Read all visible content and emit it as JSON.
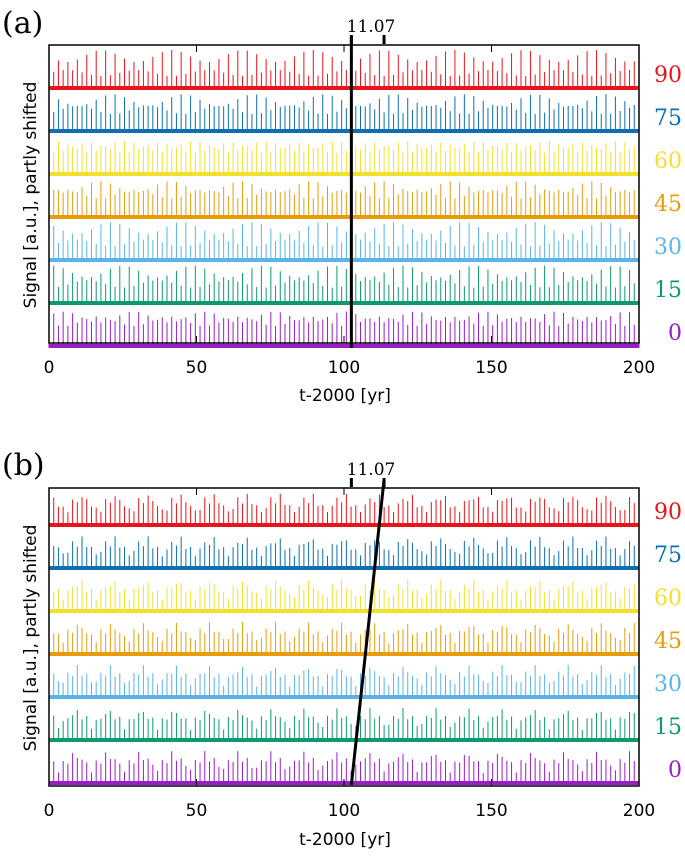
{
  "figure": {
    "panels": [
      {
        "panel_label": "(a)",
        "ylabel": "Signal [a.u.], partly shifted",
        "xlabel": "t-2000 [yr]",
        "annotation": "11.07"
      },
      {
        "panel_label": "(b)",
        "ylabel": "Signal [a.u.], partly shifted",
        "xlabel": "t-2000 [yr]",
        "annotation": "11.07"
      }
    ]
  },
  "chart_data": [
    {
      "type": "line",
      "title": "",
      "panel": "(a)",
      "xlabel": "t-2000 [yr]",
      "ylabel": "Signal [a.u.], partly shifted",
      "xlim": [
        0,
        200
      ],
      "x_ticks": [
        0,
        50,
        100,
        150,
        200
      ],
      "grid": false,
      "series": [
        {
          "name": "90",
          "color": "#e8141c",
          "period_yr": 1.6,
          "envelope_period_yr": 3.2
        },
        {
          "name": "75",
          "color": "#0e6fb3",
          "period_yr": 1.6,
          "envelope_period_yr": 3.2
        },
        {
          "name": "60",
          "color": "#f2e12c",
          "period_yr": 1.6,
          "envelope_period_yr": 3.2
        },
        {
          "name": "45",
          "color": "#e89c0c",
          "period_yr": 1.6,
          "envelope_period_yr": 3.2
        },
        {
          "name": "30",
          "color": "#5ab4e8",
          "period_yr": 1.6,
          "envelope_period_yr": 3.2
        },
        {
          "name": "15",
          "color": "#0e9a70",
          "period_yr": 1.6,
          "envelope_period_yr": 3.2
        },
        {
          "name": "0",
          "color": "#9a1ec8",
          "period_yr": 1.6,
          "envelope_period_yr": 3.2
        }
      ],
      "annotation": {
        "text": "11.07",
        "line": {
          "x_start": 102.5,
          "x_end": 102.5,
          "from_series": "0",
          "to_series": "90"
        },
        "bracket": [
          102.5,
          113.57
        ]
      }
    },
    {
      "type": "line",
      "title": "",
      "panel": "(b)",
      "xlabel": "t-2000 [yr]",
      "ylabel": "Signal [a.u.], partly shifted",
      "xlim": [
        0,
        200
      ],
      "x_ticks": [
        0,
        50,
        100,
        150,
        200
      ],
      "grid": false,
      "series": [
        {
          "name": "90",
          "color": "#e8141c",
          "period_yr": 1.6,
          "envelope_period_yr": 11.07
        },
        {
          "name": "75",
          "color": "#0e6fb3",
          "period_yr": 1.6,
          "envelope_period_yr": 11.07
        },
        {
          "name": "60",
          "color": "#f2e12c",
          "period_yr": 1.6,
          "envelope_period_yr": 11.07
        },
        {
          "name": "45",
          "color": "#e89c0c",
          "period_yr": 1.6,
          "envelope_period_yr": 11.07
        },
        {
          "name": "30",
          "color": "#5ab4e8",
          "period_yr": 1.6,
          "envelope_period_yr": 11.07
        },
        {
          "name": "15",
          "color": "#0e9a70",
          "period_yr": 1.6,
          "envelope_period_yr": 11.07
        },
        {
          "name": "0",
          "color": "#9a1ec8",
          "period_yr": 1.6,
          "envelope_period_yr": 11.07
        }
      ],
      "annotation": {
        "text": "11.07",
        "line": {
          "x_start": 102.5,
          "x_end": 113.57,
          "from_series": "0",
          "to_series": "90"
        },
        "bracket": [
          102.5,
          113.57
        ]
      }
    }
  ]
}
